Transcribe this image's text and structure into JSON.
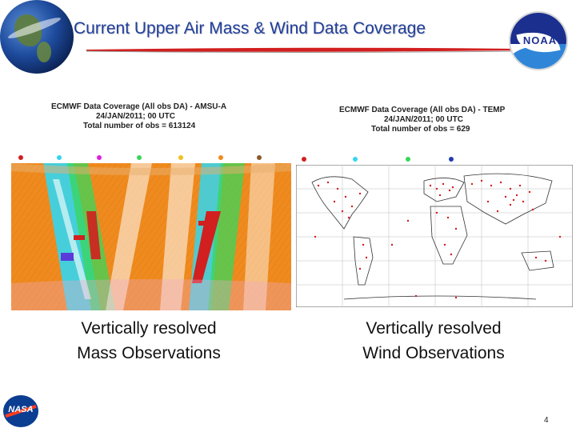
{
  "slide": {
    "title": "Current Upper Air Mass & Wind Data Coverage",
    "page_number": "4"
  },
  "logos": {
    "noaa": "NOAA",
    "nasa": "NASA"
  },
  "left_map": {
    "title_line1": "ECMWF Data Coverage (All obs DA) - AMSU-A",
    "title_line2": "24/JAN/2011; 00 UTC",
    "title_line3": "Total number of obs = 613124",
    "caption_line1": "Vertically resolved",
    "caption_line2": "Mass Observations"
  },
  "right_map": {
    "title_line1": "ECMWF Data Coverage (All obs DA) - TEMP",
    "title_line2": "24/JAN/2011; 00 UTC",
    "title_line3": "Total number of obs = 629",
    "caption_line1": "Vertically resolved",
    "caption_line2": "Wind Observations"
  },
  "colors": {
    "title": "#1f3d9c",
    "swoosh": "#d21f1f",
    "amsu_orange": "#f08a1e",
    "amsu_cyan": "#33d6ee",
    "amsu_green": "#39d65a",
    "temp_dots": "#d21f1f"
  }
}
